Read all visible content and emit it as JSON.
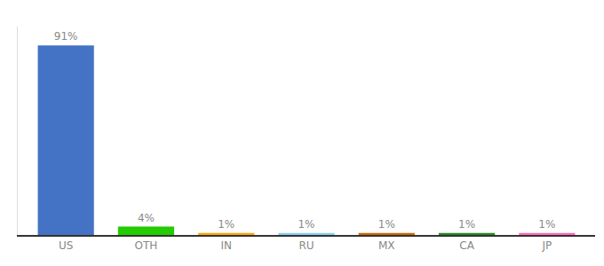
{
  "chart_data": {
    "type": "bar",
    "categories": [
      "US",
      "OTH",
      "IN",
      "RU",
      "MX",
      "CA",
      "JP"
    ],
    "values": [
      91,
      4,
      1,
      1,
      1,
      1,
      1
    ],
    "value_labels": [
      "91%",
      "4%",
      "1%",
      "1%",
      "1%",
      "1%",
      "1%"
    ],
    "colors": [
      "#4472C4",
      "#22CC00",
      "#FFA500",
      "#87CEEB",
      "#CC6600",
      "#228B22",
      "#FF69B4"
    ],
    "ylim": [
      0,
      100
    ],
    "grid": false,
    "data_labels": true,
    "tick_labels": "x"
  }
}
